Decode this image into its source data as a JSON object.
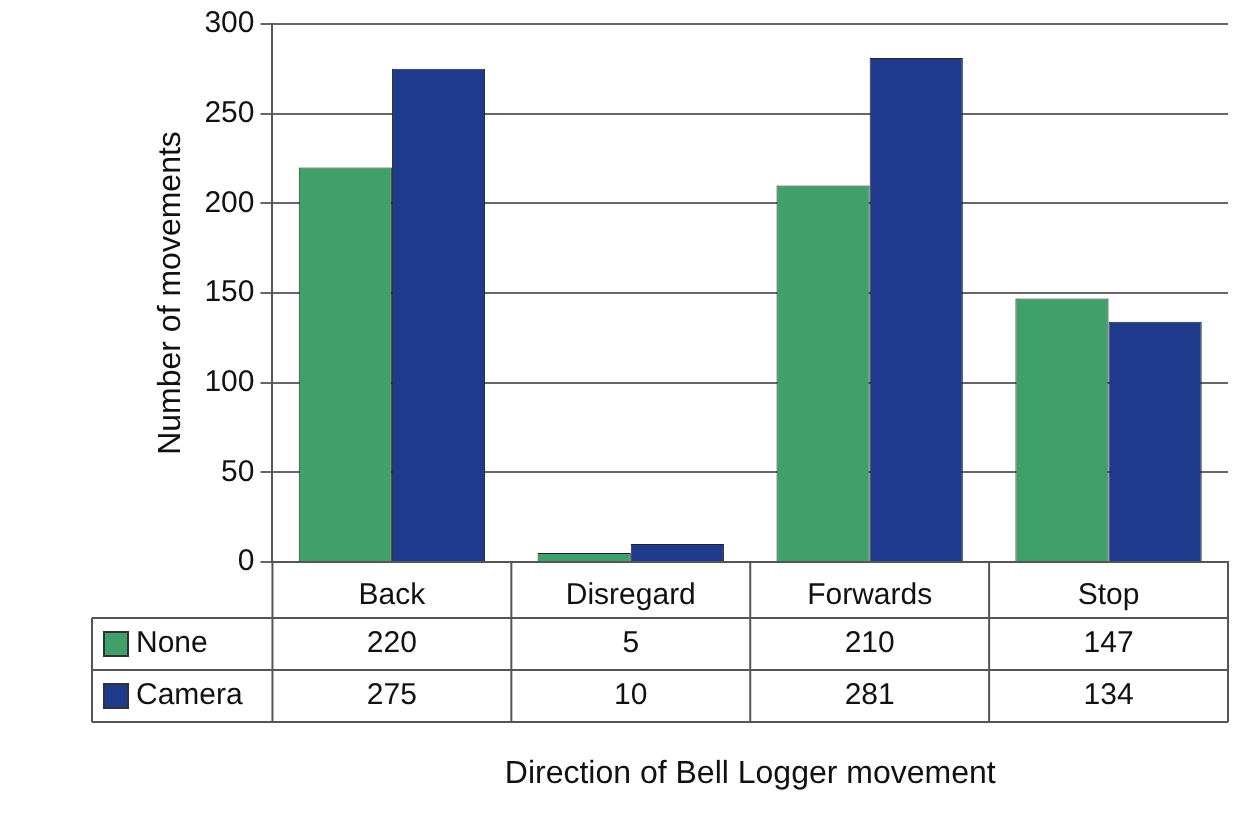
{
  "chart_data": {
    "type": "bar",
    "xlabel": "Direction of Bell Logger movement",
    "ylabel": "Number of movements",
    "categories": [
      "Back",
      "Disregard",
      "Forwards",
      "Stop"
    ],
    "series": [
      {
        "name": "None",
        "color": "#3fa06a",
        "values": [
          220,
          5,
          210,
          147
        ]
      },
      {
        "name": "Camera",
        "color": "#1f3a8c",
        "values": [
          275,
          10,
          281,
          134
        ]
      }
    ],
    "ylim": [
      0,
      300
    ],
    "yticks": [
      0,
      50,
      100,
      150,
      200,
      250,
      300
    ],
    "grid": "y",
    "legend": "bottom left",
    "data_labels": true
  }
}
